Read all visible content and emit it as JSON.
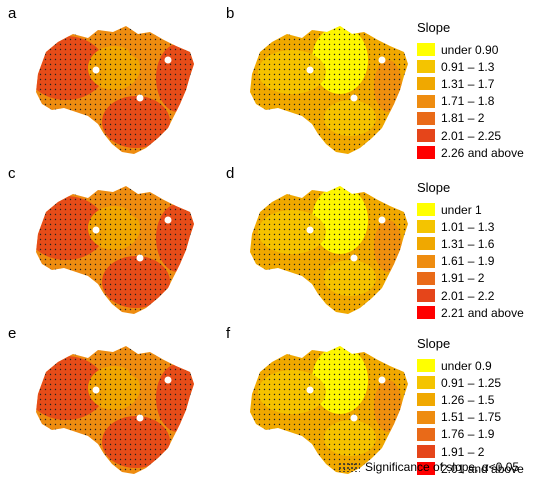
{
  "panels": [
    {
      "letter": "a",
      "variant": "dark"
    },
    {
      "letter": "b",
      "variant": "light"
    },
    {
      "letter": "c",
      "variant": "dark"
    },
    {
      "letter": "d",
      "variant": "light"
    },
    {
      "letter": "e",
      "variant": "dark"
    },
    {
      "letter": "f",
      "variant": "light"
    }
  ],
  "legends": [
    {
      "title": "Slope",
      "entries": [
        {
          "label": "under 0.90",
          "color": "#ffff00"
        },
        {
          "label": "0.91 – 1.3",
          "color": "#f4c400"
        },
        {
          "label": "1.31 – 1.7",
          "color": "#f0a800"
        },
        {
          "label": "1.71 – 1.8",
          "color": "#ee8c10"
        },
        {
          "label": "1.81 – 2",
          "color": "#e96a18"
        },
        {
          "label": "2.01 – 2.25",
          "color": "#e5451a"
        },
        {
          "label": "2.26 and above",
          "color": "#ff0000"
        }
      ]
    },
    {
      "title": "Slope",
      "entries": [
        {
          "label": "under 1",
          "color": "#ffff00"
        },
        {
          "label": "1.01 – 1.3",
          "color": "#f4c400"
        },
        {
          "label": "1.31 – 1.6",
          "color": "#f0a800"
        },
        {
          "label": "1.61 – 1.9",
          "color": "#ee8c10"
        },
        {
          "label": "1.91 – 2",
          "color": "#e96a18"
        },
        {
          "label": "2.01 – 2.2",
          "color": "#e5451a"
        },
        {
          "label": "2.21 and above",
          "color": "#ff0000"
        }
      ]
    },
    {
      "title": "Slope",
      "entries": [
        {
          "label": "under 0.9",
          "color": "#ffff00"
        },
        {
          "label": "0.91 – 1.25",
          "color": "#f4c400"
        },
        {
          "label": "1.26 – 1.5",
          "color": "#f0a800"
        },
        {
          "label": "1.51 – 1.75",
          "color": "#ee8c10"
        },
        {
          "label": "1.76 – 1.9",
          "color": "#e96a18"
        },
        {
          "label": "1.91 – 2",
          "color": "#e5451a"
        },
        {
          "label": "2.01 and above",
          "color": "#ff0000"
        }
      ]
    }
  ],
  "significance_label": "Significance of slope, α<0.05"
}
